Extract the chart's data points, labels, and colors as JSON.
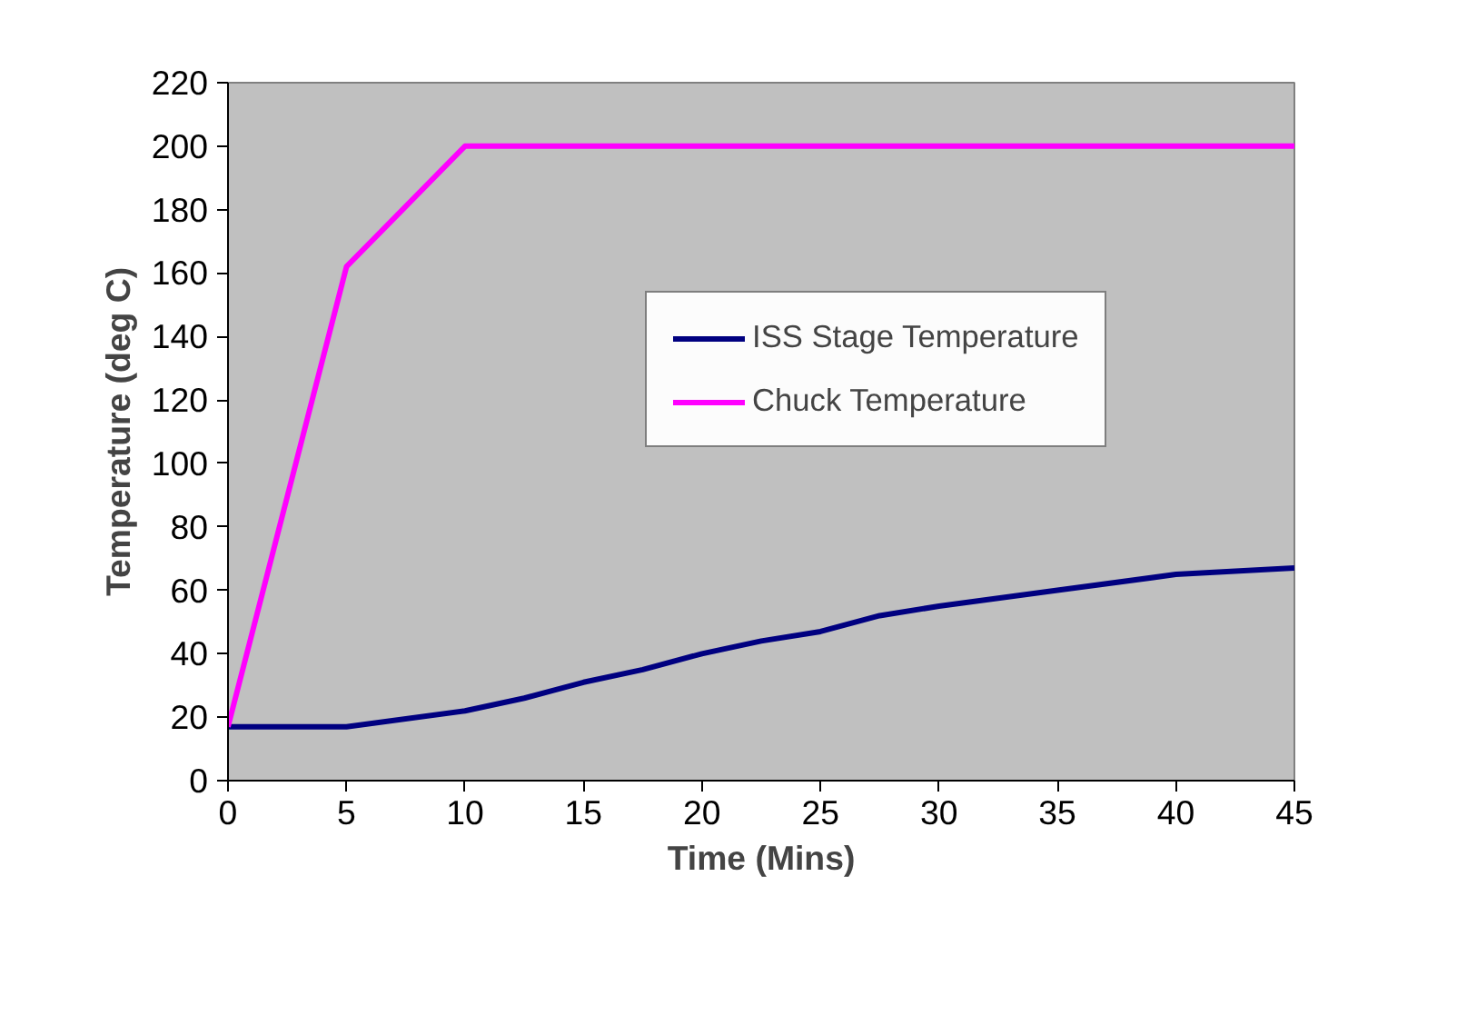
{
  "chart_data": {
    "type": "line",
    "xlabel": "Time (Mins)",
    "ylabel": "Temperature (deg C)",
    "xlim": [
      0,
      45
    ],
    "xticks": [
      0,
      5,
      10,
      15,
      20,
      25,
      30,
      35,
      40,
      45
    ],
    "ylim": [
      0,
      220
    ],
    "yticks": [
      0,
      20,
      40,
      60,
      80,
      100,
      120,
      140,
      160,
      180,
      200,
      220
    ],
    "grid": false,
    "legend": "right",
    "marker": "none",
    "line_style": "solid",
    "series": [
      {
        "name": "ISS Stage Temperature",
        "color": "#000080",
        "x": [
          0,
          5,
          10,
          12.5,
          15,
          17.5,
          20,
          22.5,
          25,
          27.5,
          30,
          35,
          40,
          45
        ],
        "values": [
          17,
          17,
          22,
          26,
          31,
          35,
          40,
          44,
          47,
          52,
          55,
          60,
          65,
          67
        ]
      },
      {
        "name": "Chuck Temperature",
        "color": "#ff00ff",
        "x": [
          0,
          5,
          10,
          45
        ],
        "values": [
          17,
          162,
          200,
          200
        ]
      }
    ]
  }
}
